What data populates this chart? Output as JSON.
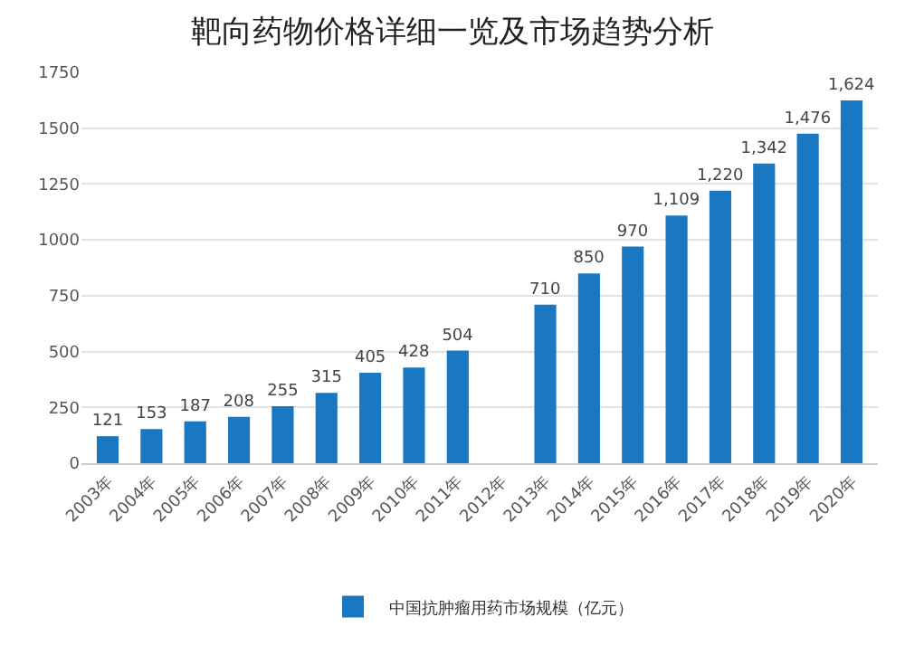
{
  "chart_data": {
    "type": "bar",
    "title": "靶向药物价格详细一览及市场趋势分析",
    "categories": [
      "2003年",
      "2004年",
      "2005年",
      "2006年",
      "2007年",
      "2008年",
      "2009年",
      "2010年",
      "2011年",
      "2012年",
      "2013年",
      "2014年",
      "2015年",
      "2016年",
      "2017年",
      "2018年",
      "2019年",
      "2020年"
    ],
    "series": [
      {
        "name": "中国抗肿瘤用药市场规模（亿元）",
        "color": "#1a78c2",
        "values": [
          121,
          153,
          187,
          208,
          255,
          315,
          405,
          428,
          504,
          null,
          710,
          850,
          970,
          1109,
          1220,
          1342,
          1476,
          1624
        ],
        "value_labels": [
          "121",
          "153",
          "187",
          "208",
          "255",
          "315",
          "405",
          "428",
          "504",
          null,
          "710",
          "850",
          "970",
          "1,109",
          "1,220",
          "1,342",
          "1,476",
          "1,624"
        ]
      }
    ],
    "ylim": [
      0,
      1750
    ],
    "yticks": [
      0,
      250,
      500,
      750,
      1000,
      1250,
      1500,
      1750
    ],
    "grid": "y",
    "legend": "bottom"
  }
}
